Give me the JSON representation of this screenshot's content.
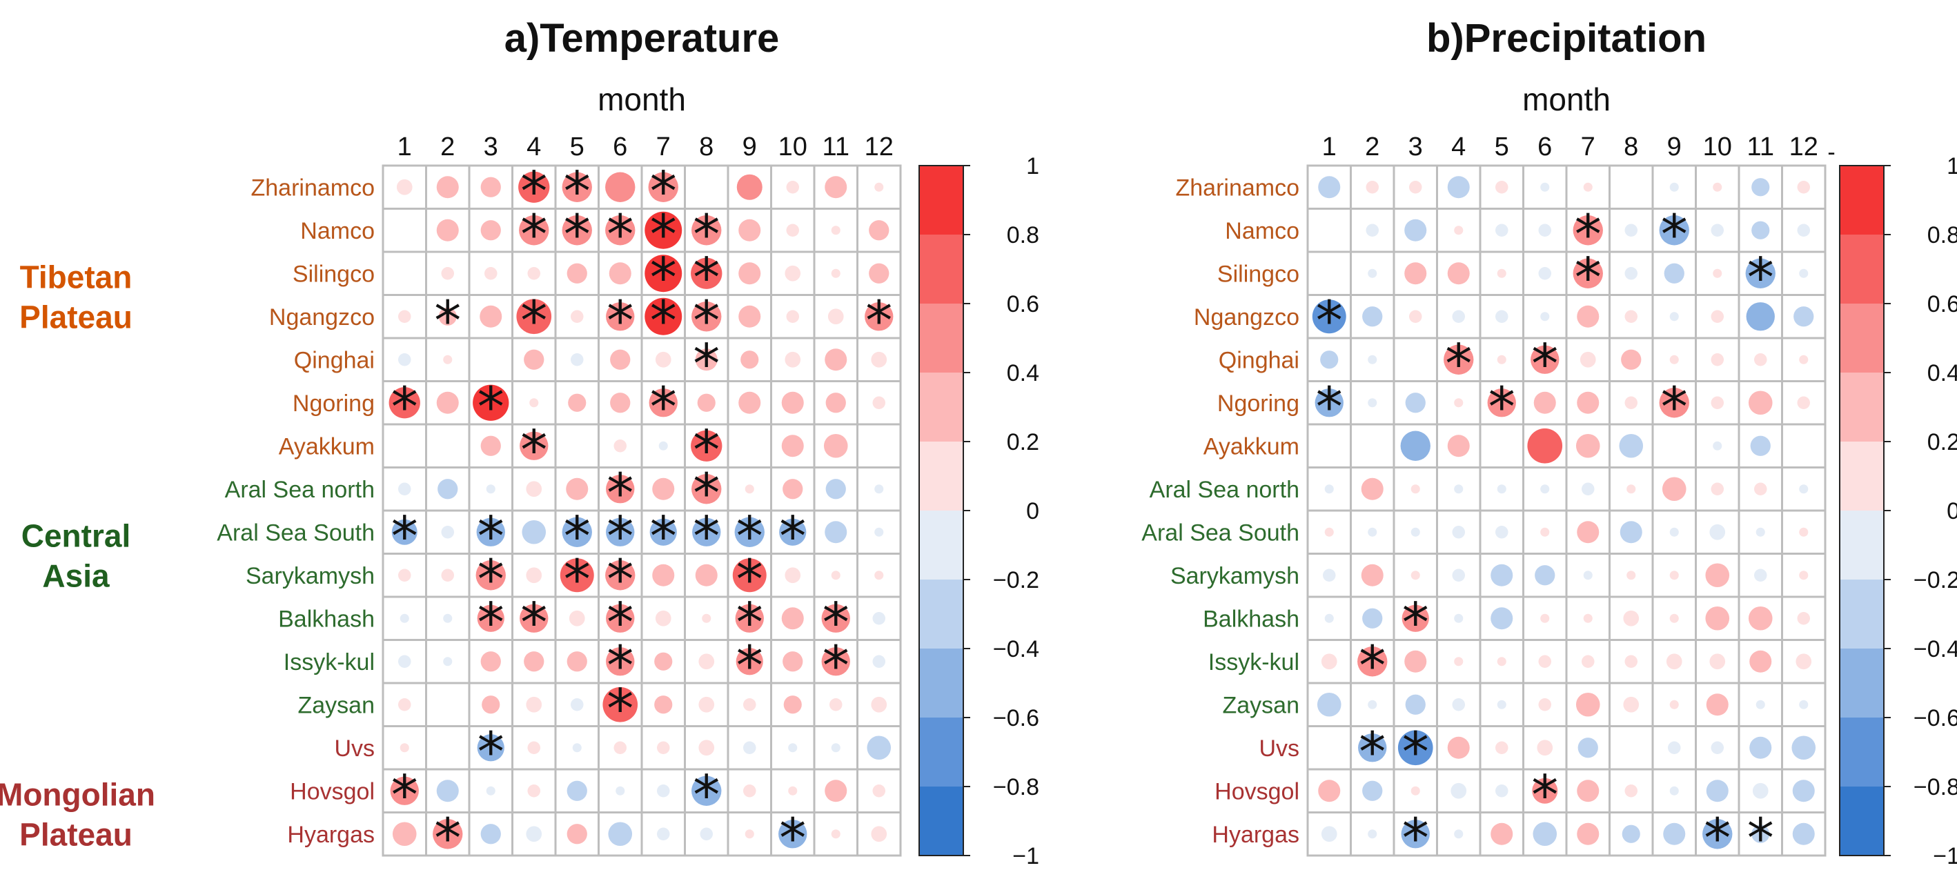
{
  "chart_data": [
    {
      "type": "heatmap",
      "title": "a)Temperature",
      "xlabel": "month",
      "x": [
        1,
        2,
        3,
        4,
        5,
        6,
        7,
        8,
        9,
        10,
        11,
        12
      ],
      "rows": [
        "Zharinamco",
        "Namco",
        "Silingco",
        "Ngangzco",
        "Qinghai",
        "Ngoring",
        "Ayakkum",
        "Aral Sea north",
        "Aral Sea South",
        "Sarykamysh",
        "Balkhash",
        "Issyk-kul",
        "Zaysan",
        "Uvs",
        "Hovsgol",
        "Hyargas"
      ],
      "values": [
        [
          0.15,
          0.3,
          0.25,
          0.6,
          0.55,
          0.55,
          0.55,
          0,
          0.4,
          0.1,
          0.3,
          0.05
        ],
        [
          0,
          0.3,
          0.25,
          0.55,
          0.55,
          0.55,
          0.85,
          0.55,
          0.3,
          0.1,
          0.05,
          0.25
        ],
        [
          0,
          0.1,
          0.1,
          0.1,
          0.25,
          0.3,
          0.85,
          0.6,
          0.3,
          0.15,
          0.05,
          0.25
        ],
        [
          0.1,
          0.2,
          0.3,
          0.75,
          0.1,
          0.5,
          0.85,
          0.55,
          0.3,
          0.1,
          0.15,
          0.5
        ],
        [
          -0.1,
          0.05,
          0,
          0.25,
          -0.1,
          0.25,
          0.15,
          0.3,
          0.2,
          0.15,
          0.3,
          0.15
        ],
        [
          0.6,
          0.3,
          0.8,
          0.05,
          0.2,
          0.25,
          0.5,
          0.2,
          0.3,
          0.3,
          0.25,
          0.1
        ],
        [
          0,
          0,
          0.25,
          0.5,
          0,
          0.1,
          -0.05,
          0.6,
          0,
          0.3,
          0.35,
          0
        ],
        [
          -0.1,
          -0.25,
          -0.05,
          0.15,
          0.3,
          0.5,
          0.3,
          0.55,
          0.05,
          0.25,
          -0.25,
          -0.05
        ],
        [
          -0.4,
          -0.1,
          -0.5,
          -0.35,
          -0.55,
          -0.5,
          -0.45,
          -0.5,
          -0.55,
          -0.45,
          -0.3,
          -0.05
        ],
        [
          0.1,
          0.1,
          0.55,
          0.15,
          0.7,
          0.55,
          0.3,
          0.3,
          0.7,
          0.15,
          0.05,
          0.05
        ],
        [
          -0.05,
          -0.05,
          0.45,
          0.5,
          0.15,
          0.5,
          0.15,
          0.05,
          0.5,
          0.3,
          0.5,
          -0.1
        ],
        [
          -0.1,
          -0.05,
          0.25,
          0.25,
          0.25,
          0.5,
          0.2,
          0.15,
          0.45,
          0.25,
          0.5,
          -0.1
        ],
        [
          0.1,
          0,
          0.2,
          0.15,
          -0.1,
          0.75,
          0.2,
          0.15,
          0.1,
          0.2,
          0.1,
          0.15
        ],
        [
          0.05,
          0,
          -0.45,
          0.1,
          -0.05,
          0.1,
          0.1,
          0.15,
          -0.1,
          -0.05,
          -0.05,
          -0.35
        ],
        [
          0.5,
          -0.3,
          -0.05,
          0.1,
          -0.25,
          -0.05,
          -0.1,
          -0.55,
          0.1,
          0.05,
          0.3,
          0.1
        ],
        [
          0.35,
          0.55,
          -0.25,
          -0.15,
          0.25,
          -0.35,
          -0.1,
          -0.1,
          0.05,
          -0.5,
          0.05,
          0.15
        ]
      ],
      "significant": [
        [
          4,
          5,
          7
        ],
        [
          4,
          5,
          6,
          7,
          8
        ],
        [
          7,
          8
        ],
        [
          2,
          4,
          6,
          7,
          8,
          12
        ],
        [
          8
        ],
        [
          1,
          3,
          7
        ],
        [
          4,
          8
        ],
        [
          6,
          8
        ],
        [
          1,
          3,
          5,
          6,
          7,
          8,
          9,
          10
        ],
        [
          3,
          5,
          6,
          9
        ],
        [
          3,
          4,
          6,
          9,
          11
        ],
        [
          6,
          9,
          11
        ],
        [
          6
        ],
        [
          3
        ],
        [
          1,
          8
        ],
        [
          2,
          10
        ]
      ],
      "colorbar": {
        "min": -1,
        "max": 1,
        "ticks": [
          "1",
          "0.8",
          "0.6",
          "0.4",
          "0.2",
          "0",
          "−0.2",
          "−0.4",
          "−0.6",
          "−0.8",
          "−1"
        ]
      }
    },
    {
      "type": "heatmap",
      "title": "b)Precipitation",
      "xlabel": "month",
      "x": [
        1,
        2,
        3,
        4,
        5,
        6,
        7,
        8,
        9,
        10,
        11,
        12
      ],
      "rows": [
        "Zharinamco",
        "Namco",
        "Silingco",
        "Ngangzco",
        "Qinghai",
        "Ngoring",
        "Ayakkum",
        "Aral Sea north",
        "Aral Sea South",
        "Sarykamysh",
        "Balkhash",
        "Issyk-kul",
        "Zaysan",
        "Uvs",
        "Hovsgol",
        "Hyargas"
      ],
      "values": [
        [
          -0.3,
          0.1,
          0.1,
          -0.3,
          0.1,
          -0.05,
          0.05,
          0,
          -0.05,
          0.05,
          -0.2,
          0.1
        ],
        [
          0,
          -0.1,
          -0.3,
          0.05,
          -0.1,
          -0.1,
          0.55,
          -0.1,
          -0.55,
          -0.1,
          -0.2,
          -0.1
        ],
        [
          0,
          -0.05,
          0.3,
          0.3,
          0.05,
          -0.1,
          0.55,
          -0.1,
          -0.25,
          0.05,
          -0.55,
          -0.05
        ],
        [
          -0.7,
          -0.25,
          0.1,
          -0.1,
          -0.1,
          -0.05,
          0.3,
          0.1,
          -0.05,
          0.1,
          -0.5,
          -0.25
        ],
        [
          -0.2,
          -0.05,
          0,
          0.55,
          0.05,
          0.5,
          0.15,
          0.25,
          0.05,
          0.1,
          0.1,
          0.05
        ],
        [
          -0.5,
          -0.05,
          -0.25,
          0.05,
          0.5,
          0.3,
          0.3,
          0.1,
          0.55,
          0.1,
          0.35,
          0.1
        ],
        [
          0,
          0,
          -0.55,
          0.3,
          0,
          0.75,
          0.35,
          -0.35,
          0,
          -0.05,
          -0.25,
          0
        ],
        [
          -0.05,
          0.3,
          0.05,
          -0.05,
          -0.05,
          -0.05,
          -0.1,
          0.05,
          0.35,
          0.1,
          0.1,
          -0.05
        ],
        [
          0.05,
          -0.05,
          -0.05,
          -0.1,
          -0.1,
          0.05,
          0.3,
          -0.3,
          -0.05,
          -0.15,
          -0.05,
          0.05
        ],
        [
          -0.1,
          0.3,
          0.05,
          -0.1,
          -0.3,
          -0.25,
          -0.05,
          0.05,
          0.05,
          0.35,
          -0.1,
          0.05
        ],
        [
          -0.05,
          -0.25,
          0.45,
          -0.05,
          -0.3,
          0.05,
          0.05,
          0.15,
          0.05,
          0.35,
          0.35,
          0.1
        ],
        [
          0.15,
          0.55,
          0.3,
          0.05,
          0.05,
          0.1,
          0.1,
          0.1,
          0.15,
          0.15,
          0.3,
          0.15
        ],
        [
          -0.35,
          -0.05,
          -0.25,
          -0.1,
          -0.05,
          0.1,
          0.35,
          0.15,
          0.05,
          0.3,
          -0.05,
          -0.05
        ],
        [
          0,
          -0.5,
          -0.75,
          0.3,
          0.1,
          0.15,
          -0.25,
          0,
          -0.1,
          -0.1,
          -0.3,
          -0.35
        ],
        [
          0.3,
          -0.25,
          0.05,
          -0.15,
          -0.1,
          0.4,
          0.3,
          0.1,
          -0.05,
          -0.3,
          -0.15,
          -0.3
        ],
        [
          -0.15,
          -0.05,
          -0.5,
          -0.05,
          0.3,
          -0.35,
          0.3,
          -0.2,
          -0.3,
          -0.55,
          -0.2,
          -0.3
        ]
      ],
      "significant": [
        [],
        [
          7,
          9
        ],
        [
          7,
          11
        ],
        [
          1
        ],
        [
          4,
          6
        ],
        [
          1,
          5,
          9
        ],
        [],
        [],
        [],
        [],
        [
          3
        ],
        [
          2
        ],
        [],
        [
          2,
          3
        ],
        [
          6
        ],
        [
          3,
          10,
          11
        ]
      ],
      "colorbar": {
        "min": -1,
        "max": 1,
        "ticks": [
          "1",
          "0.8",
          "0.6",
          "0.4",
          "0.2",
          "0",
          "−0.2",
          "−0.4",
          "−0.6",
          "−0.8",
          "−1"
        ]
      }
    }
  ],
  "row_colors": [
    "#b8561a",
    "#b8561a",
    "#b8561a",
    "#b8561a",
    "#b8561a",
    "#b8561a",
    "#b8561a",
    "#2d6b2d",
    "#2d6b2d",
    "#2d6b2d",
    "#2d6b2d",
    "#2d6b2d",
    "#2d6b2d",
    "#a83232",
    "#a83232",
    "#a83232"
  ],
  "groups": [
    {
      "lines": [
        "Tibetan",
        "Plateau"
      ],
      "color": "#d45500",
      "rows": [
        2,
        3
      ]
    },
    {
      "lines": [
        "Central",
        "Asia"
      ],
      "color": "#1f5f1f",
      "rows": [
        8,
        9
      ]
    },
    {
      "lines": [
        "Mongolian",
        "Plateau"
      ],
      "color": "#a83232",
      "rows": [
        14,
        15
      ]
    }
  ],
  "colorbar_header": "-",
  "star_symbol": "*",
  "palette_pos": [
    "#fde0e0",
    "#fcb8b8",
    "#f98e8e",
    "#f66262",
    "#f33636",
    "#f00000"
  ],
  "palette_neg": [
    "#e4ecf6",
    "#bcd2ee",
    "#8db3e3",
    "#5e93d8",
    "#3478cb",
    "#1769c4"
  ]
}
